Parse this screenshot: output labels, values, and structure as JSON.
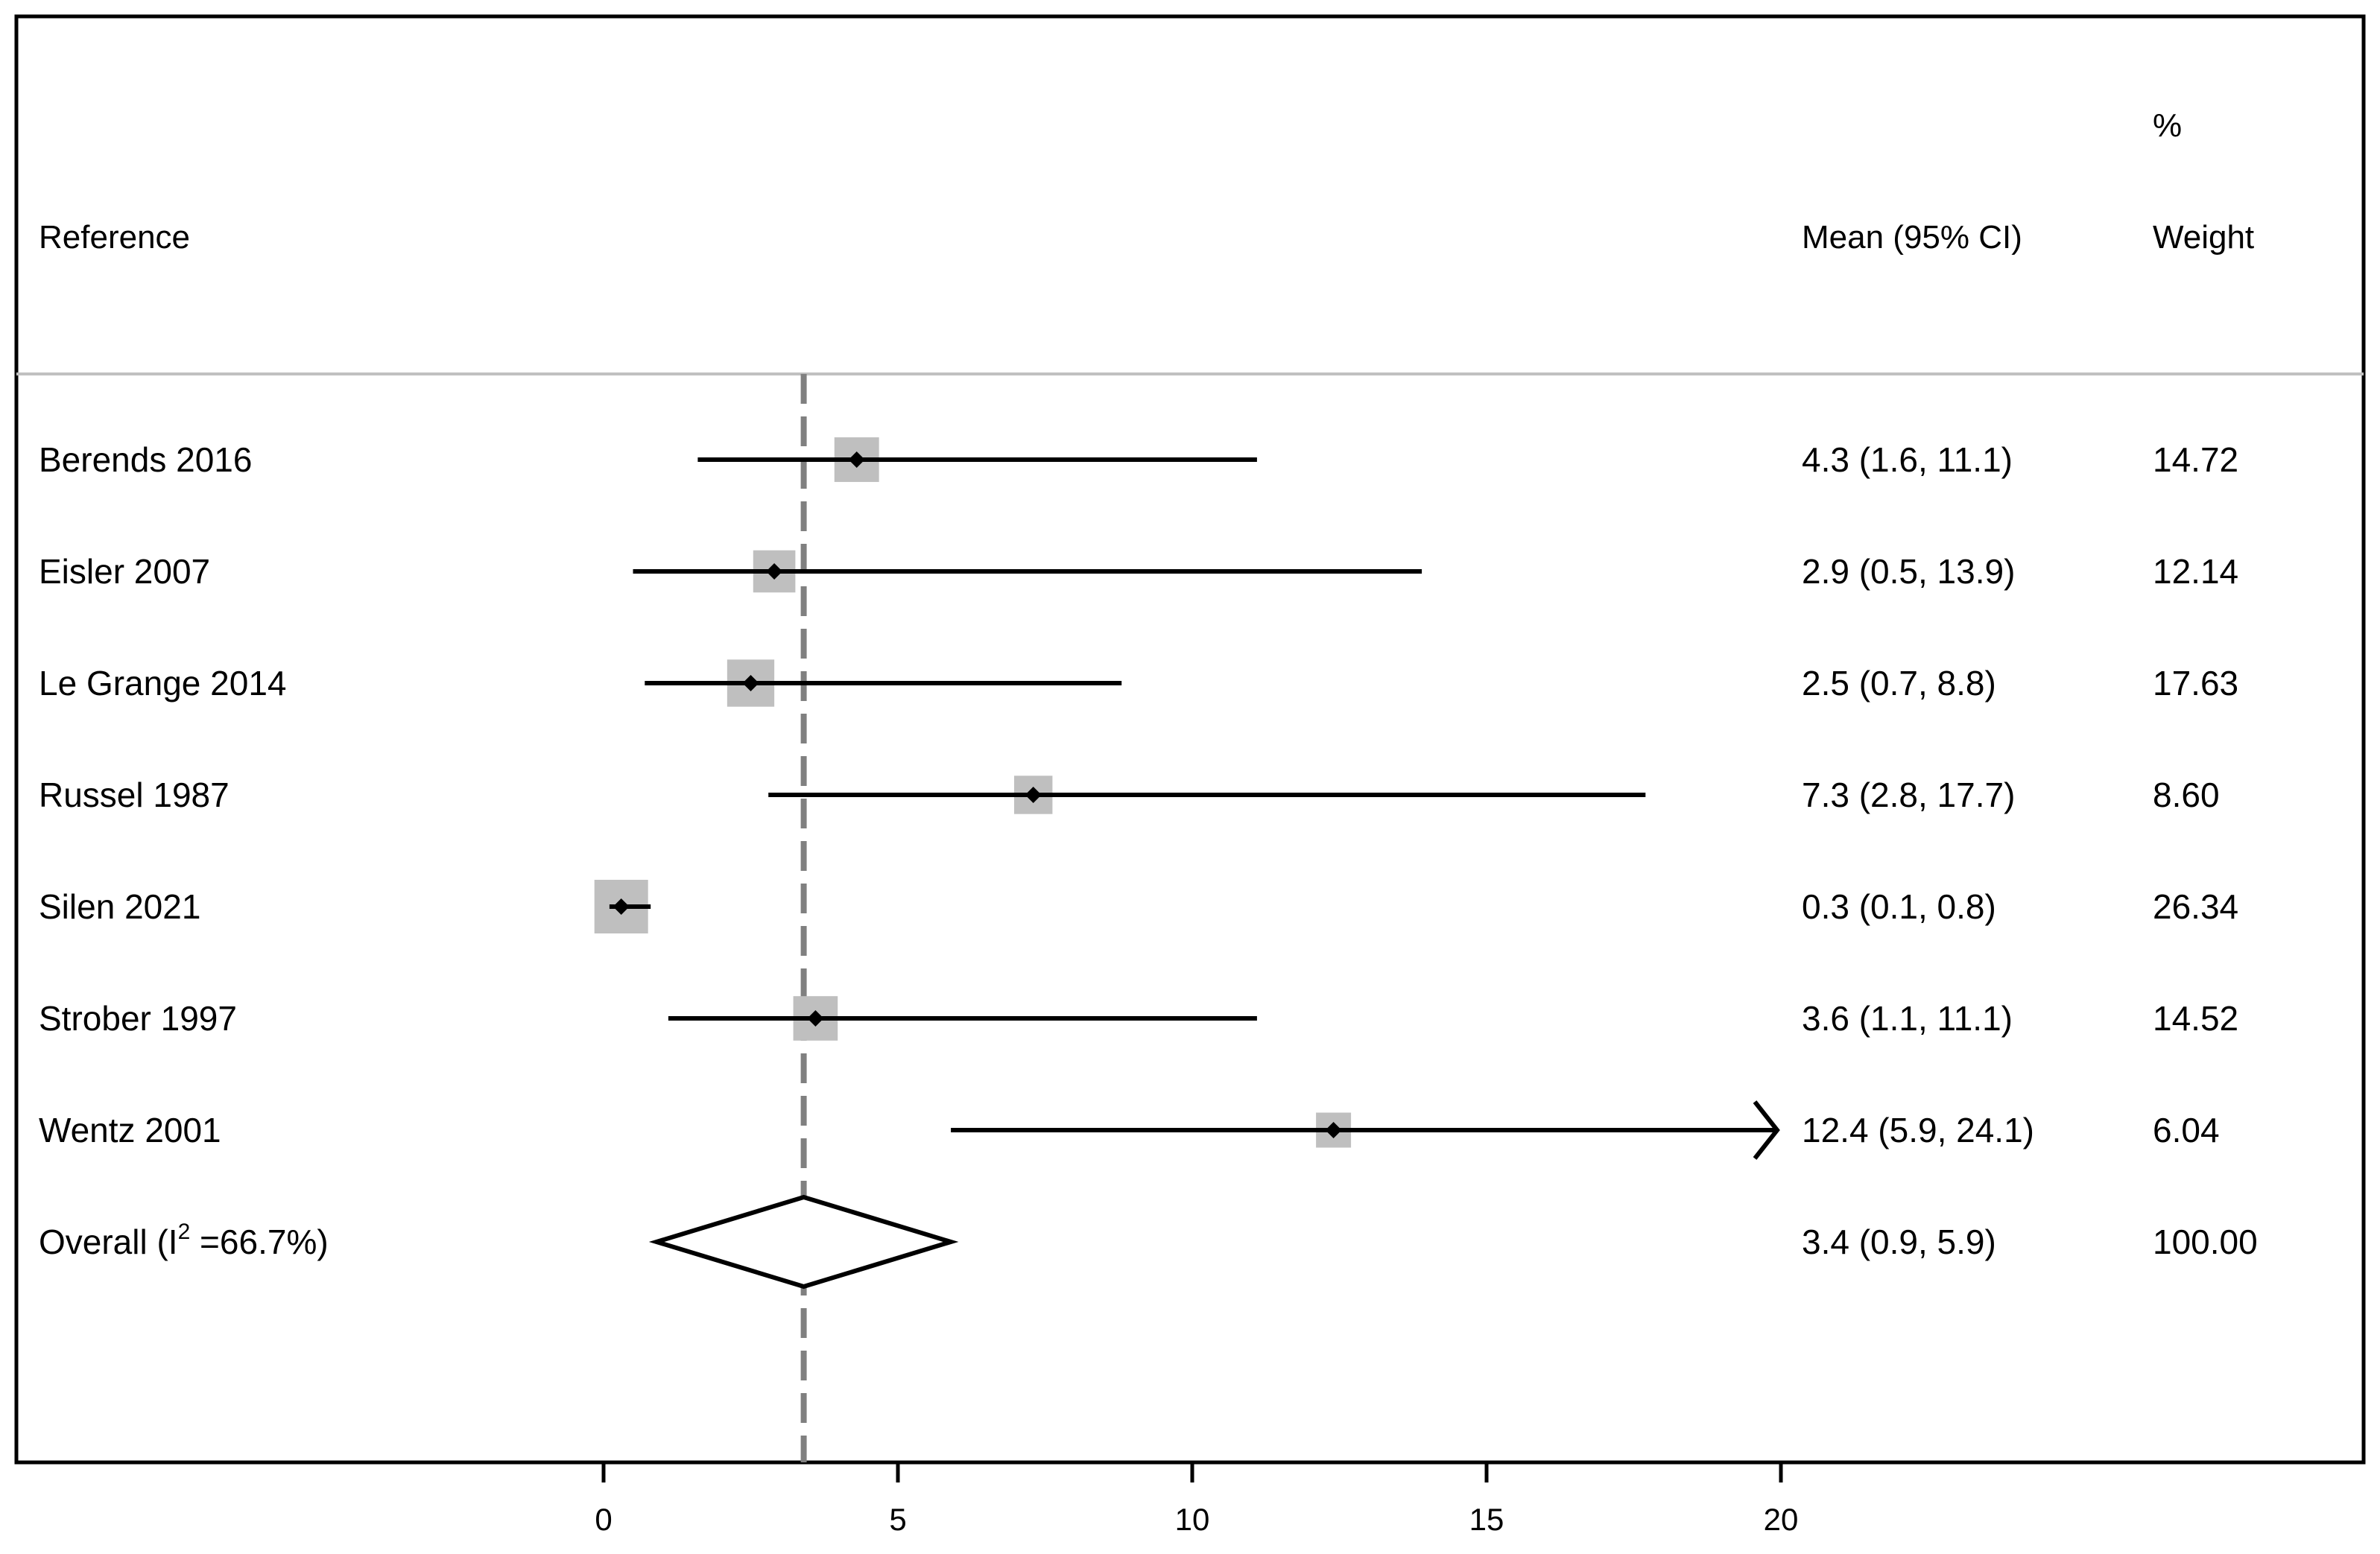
{
  "chart_data": {
    "type": "forest",
    "headers": {
      "reference": "Reference",
      "mean_ci": "Mean (95% CI)",
      "weight_line1": "%",
      "weight_line2": "Weight"
    },
    "studies": [
      {
        "reference": "Berends 2016",
        "mean": 4.3,
        "lower": 1.6,
        "upper": 11.1,
        "ci_text": "4.3 (1.6, 11.1)",
        "weight": "14.72"
      },
      {
        "reference": "Eisler 2007",
        "mean": 2.9,
        "lower": 0.5,
        "upper": 13.9,
        "ci_text": "2.9 (0.5, 13.9)",
        "weight": "12.14"
      },
      {
        "reference": "Le Grange 2014",
        "mean": 2.5,
        "lower": 0.7,
        "upper": 8.8,
        "ci_text": "2.5 (0.7, 8.8)",
        "weight": "17.63"
      },
      {
        "reference": "Russel 1987",
        "mean": 7.3,
        "lower": 2.8,
        "upper": 17.7,
        "ci_text": "7.3 (2.8, 17.7)",
        "weight": "8.60"
      },
      {
        "reference": "Silen 2021",
        "mean": 0.3,
        "lower": 0.1,
        "upper": 0.8,
        "ci_text": "0.3 (0.1, 0.8)",
        "weight": "26.34"
      },
      {
        "reference": "Strober 1997",
        "mean": 3.6,
        "lower": 1.1,
        "upper": 11.1,
        "ci_text": "3.6 (1.1, 11.1)",
        "weight": "14.52"
      },
      {
        "reference": "Wentz 2001",
        "mean": 12.4,
        "lower": 5.9,
        "upper": 24.1,
        "ci_text": "12.4 (5.9, 24.1)",
        "weight": "6.04"
      }
    ],
    "overall": {
      "label_prefix": "Overall  (I",
      "label_sup": "2",
      "label_suffix": " =66.7%)",
      "mean": 3.4,
      "lower": 0.9,
      "upper": 5.9,
      "ci_text": "3.4 (0.9, 5.9)",
      "weight": "100.00"
    },
    "x_axis": {
      "ticks": [
        0,
        5,
        10,
        15,
        20
      ],
      "xlim": [
        0,
        20
      ]
    },
    "reference_line": 3.4,
    "colors": {
      "box": "#bfbfbf",
      "line": "#000000",
      "reference_line": "#808080",
      "header_rule": "#c0c0c0"
    }
  }
}
